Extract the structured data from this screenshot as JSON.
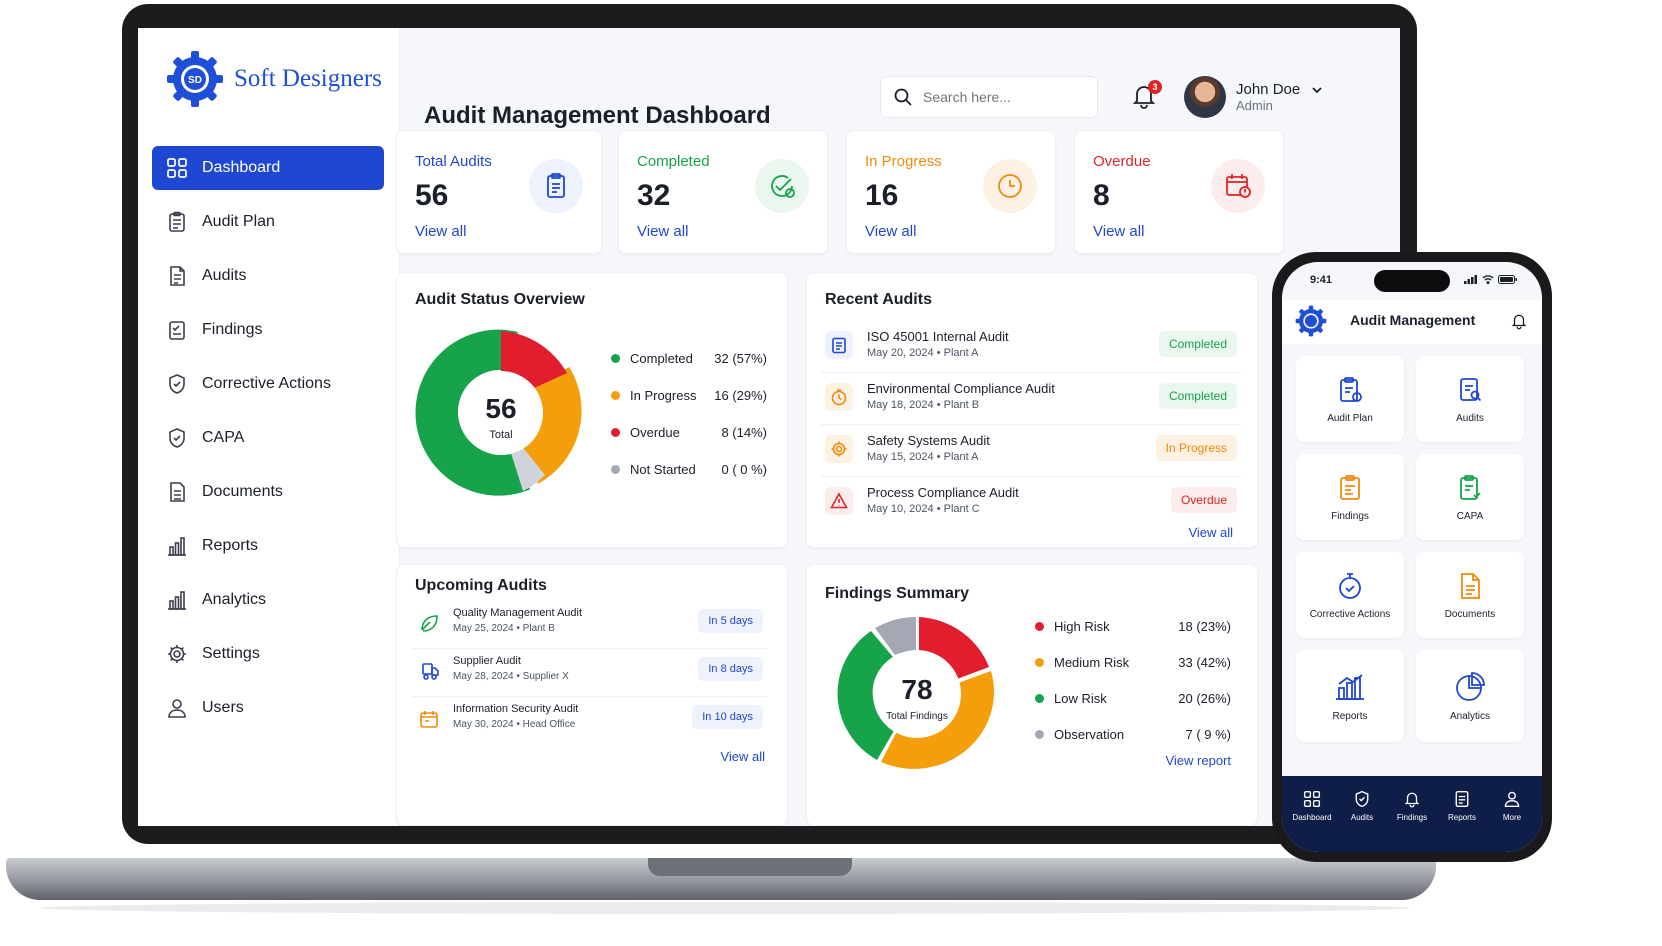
{
  "brand": {
    "name": "Soft Designers",
    "logo_letters": "SD"
  },
  "sidebar": {
    "items": [
      {
        "label": "Dashboard",
        "icon": "grid-icon",
        "active": true
      },
      {
        "label": "Audit Plan",
        "icon": "clipboard-icon"
      },
      {
        "label": "Audits",
        "icon": "document-icon"
      },
      {
        "label": "Findings",
        "icon": "checklist-icon"
      },
      {
        "label": "Corrective Actions",
        "icon": "shield-check-icon"
      },
      {
        "label": "CAPA",
        "icon": "shield-check-icon"
      },
      {
        "label": "Documents",
        "icon": "file-icon"
      },
      {
        "label": "Reports",
        "icon": "bar-chart-icon"
      },
      {
        "label": "Analytics",
        "icon": "bar-chart-icon"
      },
      {
        "label": "Settings",
        "icon": "gear-icon"
      },
      {
        "label": "Users",
        "icon": "user-icon"
      }
    ]
  },
  "header": {
    "title": "Audit Management Dashboard",
    "search_placeholder": "Search here...",
    "notification_count": "3",
    "user_name": "John Doe",
    "user_role": "Admin"
  },
  "stats": [
    {
      "label": "Total Audits",
      "value": "56",
      "link": "View all",
      "color": "#1f47d1"
    },
    {
      "label": "Completed",
      "value": "32",
      "link": "View all",
      "color": "#16a34a"
    },
    {
      "label": "In Progress",
      "value": "16",
      "link": "View all",
      "color": "#f08a0c"
    },
    {
      "label": "Overdue",
      "value": "8",
      "link": "View all",
      "color": "#dc2626"
    }
  ],
  "audit_status": {
    "title": "Audit Status Overview",
    "center_value": "56",
    "center_label": "Total",
    "legend": [
      {
        "label": "Completed",
        "value": "32 (57%)",
        "color": "#16a34a"
      },
      {
        "label": "In Progress",
        "value": "16 (29%)",
        "color": "#f59e0b"
      },
      {
        "label": "Overdue",
        "value": "8 (14%)",
        "color": "#e11d2e"
      },
      {
        "label": "Not Started",
        "value": "0 ( 0 %)",
        "color": "#a3a8b3"
      }
    ]
  },
  "recent_audits": {
    "title": "Recent Audits",
    "link": "View all",
    "rows": [
      {
        "name": "ISO 45001 Internal Audit",
        "date": "May 20, 2024",
        "site": "Plant A",
        "status": "Completed",
        "icon": "clipboard-icon"
      },
      {
        "name": "Environmental Compliance Audit",
        "date": "May 18, 2024",
        "site": "Plant B",
        "status": "Completed",
        "icon": "timer-icon"
      },
      {
        "name": "Safety Systems Audit",
        "date": "May 15, 2024",
        "site": "Plant A",
        "status": "In Progress",
        "icon": "gear-icon"
      },
      {
        "name": "Process Compliance Audit",
        "date": "May 10, 2024",
        "site": "Plant C",
        "status": "Overdue",
        "icon": "warning-icon"
      }
    ]
  },
  "upcoming_audits": {
    "title": "Upcoming Audits",
    "link": "View all",
    "rows": [
      {
        "name": "Quality Management Audit",
        "date": "May 25, 2024",
        "site": "Plant B",
        "due": "In 5 days",
        "icon": "leaf-icon"
      },
      {
        "name": "Supplier Audit",
        "date": "May 28, 2024",
        "site": "Supplier X",
        "due": "In 8 days",
        "icon": "truck-icon"
      },
      {
        "name": "Information Security Audit",
        "date": "May 30, 2024",
        "site": "Head Office",
        "due": "In 10 days",
        "icon": "calendar-icon"
      }
    ]
  },
  "findings": {
    "title": "Findings Summary",
    "center_value": "78",
    "center_label": "Total Findings",
    "link": "View report",
    "legend": [
      {
        "label": "High Risk",
        "value": "18 (23%)",
        "color": "#e11d2e"
      },
      {
        "label": "Medium Risk",
        "value": "33 (42%)",
        "color": "#f59e0b"
      },
      {
        "label": "Low Risk",
        "value": "20 (26%)",
        "color": "#16a34a"
      },
      {
        "label": "Observation",
        "value": "7 ( 9 %)",
        "color": "#a3a8b3"
      }
    ]
  },
  "mobile": {
    "time": "9:41",
    "title": "Audit Management",
    "tiles": [
      {
        "label": "Audit Plan",
        "icon": "clipboard-icon"
      },
      {
        "label": "Audits",
        "icon": "document-search-icon"
      },
      {
        "label": "Findings",
        "icon": "checklist-icon"
      },
      {
        "label": "CAPA",
        "icon": "clipboard-check-icon"
      },
      {
        "label": "Corrective Actions",
        "icon": "timer-check-icon"
      },
      {
        "label": "Documents",
        "icon": "file-icon"
      },
      {
        "label": "Reports",
        "icon": "bar-chart-icon"
      },
      {
        "label": "Analytics",
        "icon": "pie-chart-icon"
      }
    ],
    "tabs": [
      {
        "label": "Dashboard",
        "icon": "grid-icon"
      },
      {
        "label": "Audits",
        "icon": "shield-check-icon"
      },
      {
        "label": "Findings",
        "icon": "bell-icon"
      },
      {
        "label": "Reports",
        "icon": "file-icon"
      },
      {
        "label": "More",
        "icon": "user-icon"
      }
    ]
  }
}
